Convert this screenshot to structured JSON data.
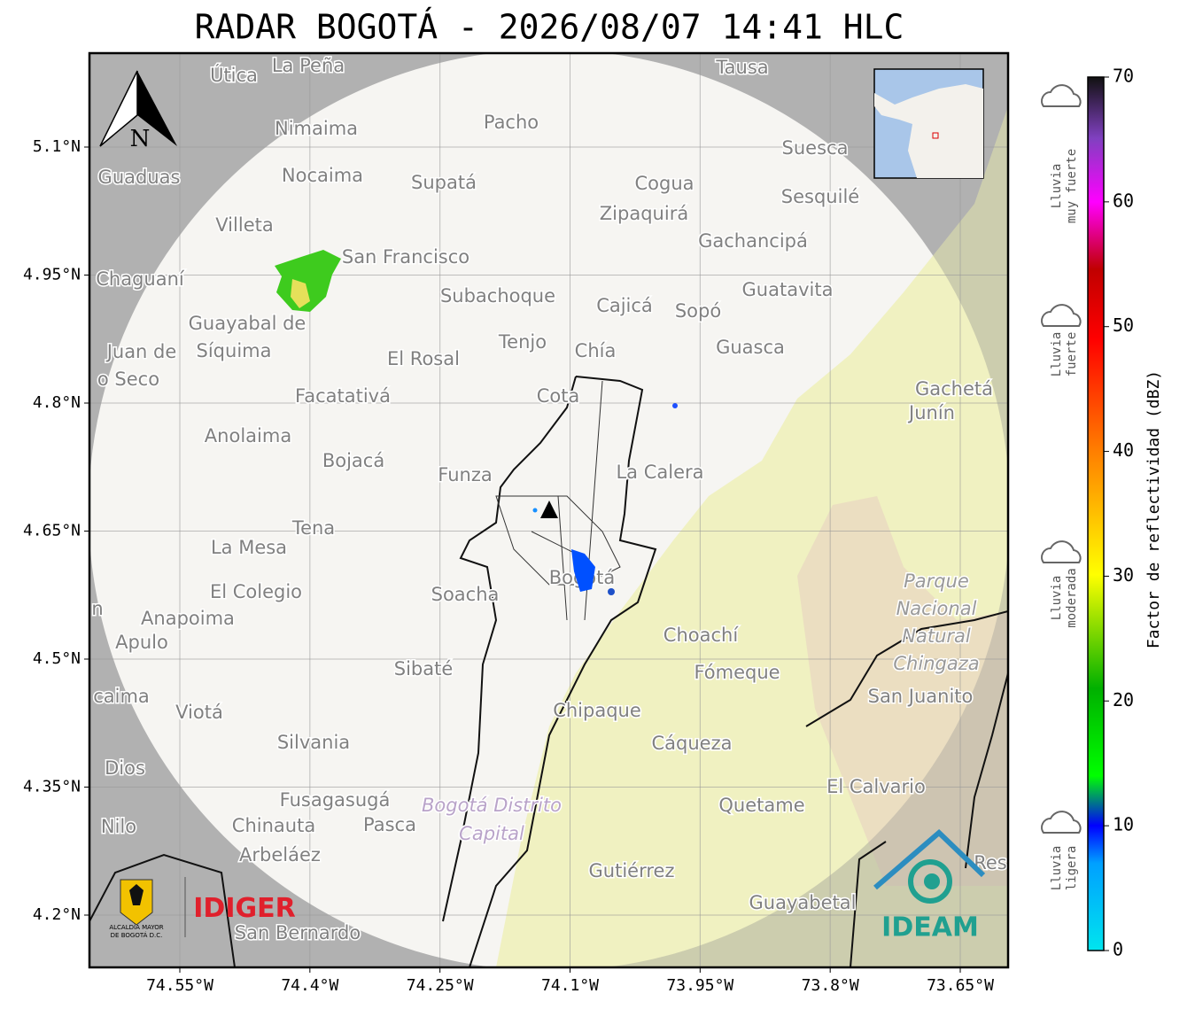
{
  "map": {
    "title": "RADAR BOGOTÁ - 2026/08/07 14:41 HLC",
    "lon_ticks": [
      {
        "value": -74.55,
        "label": "74.55°W"
      },
      {
        "value": -74.4,
        "label": "74.4°W"
      },
      {
        "value": -74.25,
        "label": "74.25°W"
      },
      {
        "value": -74.1,
        "label": "74.1°W"
      },
      {
        "value": -73.95,
        "label": "73.95°W"
      },
      {
        "value": -73.8,
        "label": "73.8°W"
      },
      {
        "value": -73.65,
        "label": "73.65°W"
      }
    ],
    "lat_ticks": [
      {
        "value": 5.1,
        "label": "5.1°N"
      },
      {
        "value": 4.95,
        "label": "4.95°N"
      },
      {
        "value": 4.8,
        "label": "4.8°N"
      },
      {
        "value": 4.65,
        "label": "4.65°N"
      },
      {
        "value": 4.5,
        "label": "4.5°N"
      },
      {
        "value": 4.35,
        "label": "4.35°N"
      },
      {
        "value": 4.2,
        "label": "4.2°N"
      }
    ],
    "colorbar": {
      "label": "Factor de reflectividad (dBZ)",
      "ticks": [
        0,
        10,
        20,
        30,
        40,
        50,
        60,
        70
      ]
    },
    "rain_levels": [
      [
        "Lluvia",
        "muy fuerte"
      ],
      [
        "Lluvia",
        "fuerte"
      ],
      [
        "Lluvia",
        "moderada"
      ],
      [
        "Lluvia",
        "ligera"
      ]
    ],
    "north": "N",
    "places": [
      "La Peña",
      "Útica",
      "Tausa",
      "Pacho",
      "Nimaima",
      "Suesca",
      "Guaduas",
      "Nocaima",
      "Supatá",
      "Cogua",
      "Sesquilé",
      "Zipaquirá",
      "Villeta",
      "Gachancipá",
      "San Francisco",
      "Chaguaní",
      "Guatavita",
      "Subachoque",
      "Cajicá",
      "Sopó",
      "Guayabal de",
      "Síquima",
      "Juan de",
      "Tenjo",
      "Chía",
      "Guasca",
      "El Rosal",
      "o Seco",
      "Facatativá",
      "Cota",
      "Gachetá",
      "Junín",
      "Anolaima",
      "Bojacá",
      "Funza",
      "La Calera",
      "Tena",
      "La Mesa",
      "Bogotá",
      "El Colegio",
      "Soacha",
      "n",
      "Anapoima",
      "Apulo",
      "Choachí",
      "Sibaté",
      "Fómeque",
      "San Juanito",
      "caima",
      "Viotá",
      "Chipaque",
      "Silvania",
      "Cáqueza",
      "Dios",
      "El Calvario",
      "Fusagasugá",
      "Quetame",
      "Nilo",
      "Chinauta",
      "Pasca",
      "Arbeláez",
      "Gutiérrez",
      "Res",
      "Guayabetal",
      "San Bernardo"
    ],
    "park": [
      "Parque",
      "Nacional",
      "Natural",
      "Chingaza"
    ],
    "district": [
      "Bogotá Distrito",
      "Capital"
    ],
    "logos": {
      "alcaldia": [
        "ALCALDÍA MAYOR",
        "DE BOGOTÁ D.C."
      ],
      "idiger": "IDIGER",
      "ideam": "IDEAM"
    }
  }
}
